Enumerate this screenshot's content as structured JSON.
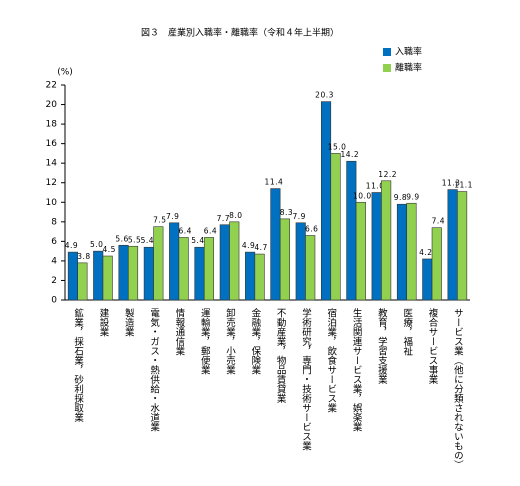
{
  "chart_data": {
    "type": "bar",
    "title": "図３　産業別入職率・離職率（令和４年上半期）",
    "y_label": "(%)",
    "categories": [
      "鉱業，採石業，砂利採取業",
      "建設業",
      "製造業",
      "電気・ガス・熱供給・水道業",
      "情報通信業",
      "運輸業，郵便業",
      "卸売業，小売業",
      "金融業，保険業",
      "不動産業，物品賃貸業",
      "学術研究，専門・技術サービス業",
      "宿泊業，飲食サービス業",
      "生活関連サービス業，娯楽業",
      "教育，学習支援業",
      "医療，福祉",
      "複合サービス事業",
      "サービス業（他に分類されないもの）"
    ],
    "series": [
      {
        "name": "入職率",
        "color": "#0070c0",
        "values": [
          4.9,
          5.0,
          5.6,
          5.4,
          7.9,
          5.4,
          7.7,
          4.9,
          11.4,
          7.9,
          20.3,
          14.2,
          11.0,
          9.8,
          4.2,
          11.3
        ],
        "value_labels": [
          "4.9",
          "5.0",
          "5.6",
          "5.4",
          "7.9",
          "5.4",
          "7.7",
          "4.9",
          "11.4",
          "7.9",
          "20.3",
          "14.2",
          "11.0",
          "9.8",
          "4.2",
          "11.3"
        ]
      },
      {
        "name": "離職率",
        "color": "#92d050",
        "values": [
          3.8,
          4.5,
          5.5,
          7.5,
          6.4,
          6.4,
          8.0,
          4.7,
          8.3,
          6.6,
          15.0,
          10.0,
          12.2,
          9.9,
          7.4,
          11.1
        ],
        "value_labels": [
          "3.8",
          "4.5",
          "5.5",
          "7.5",
          "6.4",
          "6.4",
          "8.0",
          "4.7",
          "8.3",
          "6.6",
          "15.0",
          "10.0",
          "12.2",
          "9.9",
          "7.4",
          "11.1"
        ]
      }
    ],
    "ylim": [
      0,
      22
    ],
    "yticks": [
      0,
      2,
      4,
      6,
      8,
      10,
      12,
      14,
      16,
      18,
      20,
      22
    ],
    "legend": "top-right"
  }
}
